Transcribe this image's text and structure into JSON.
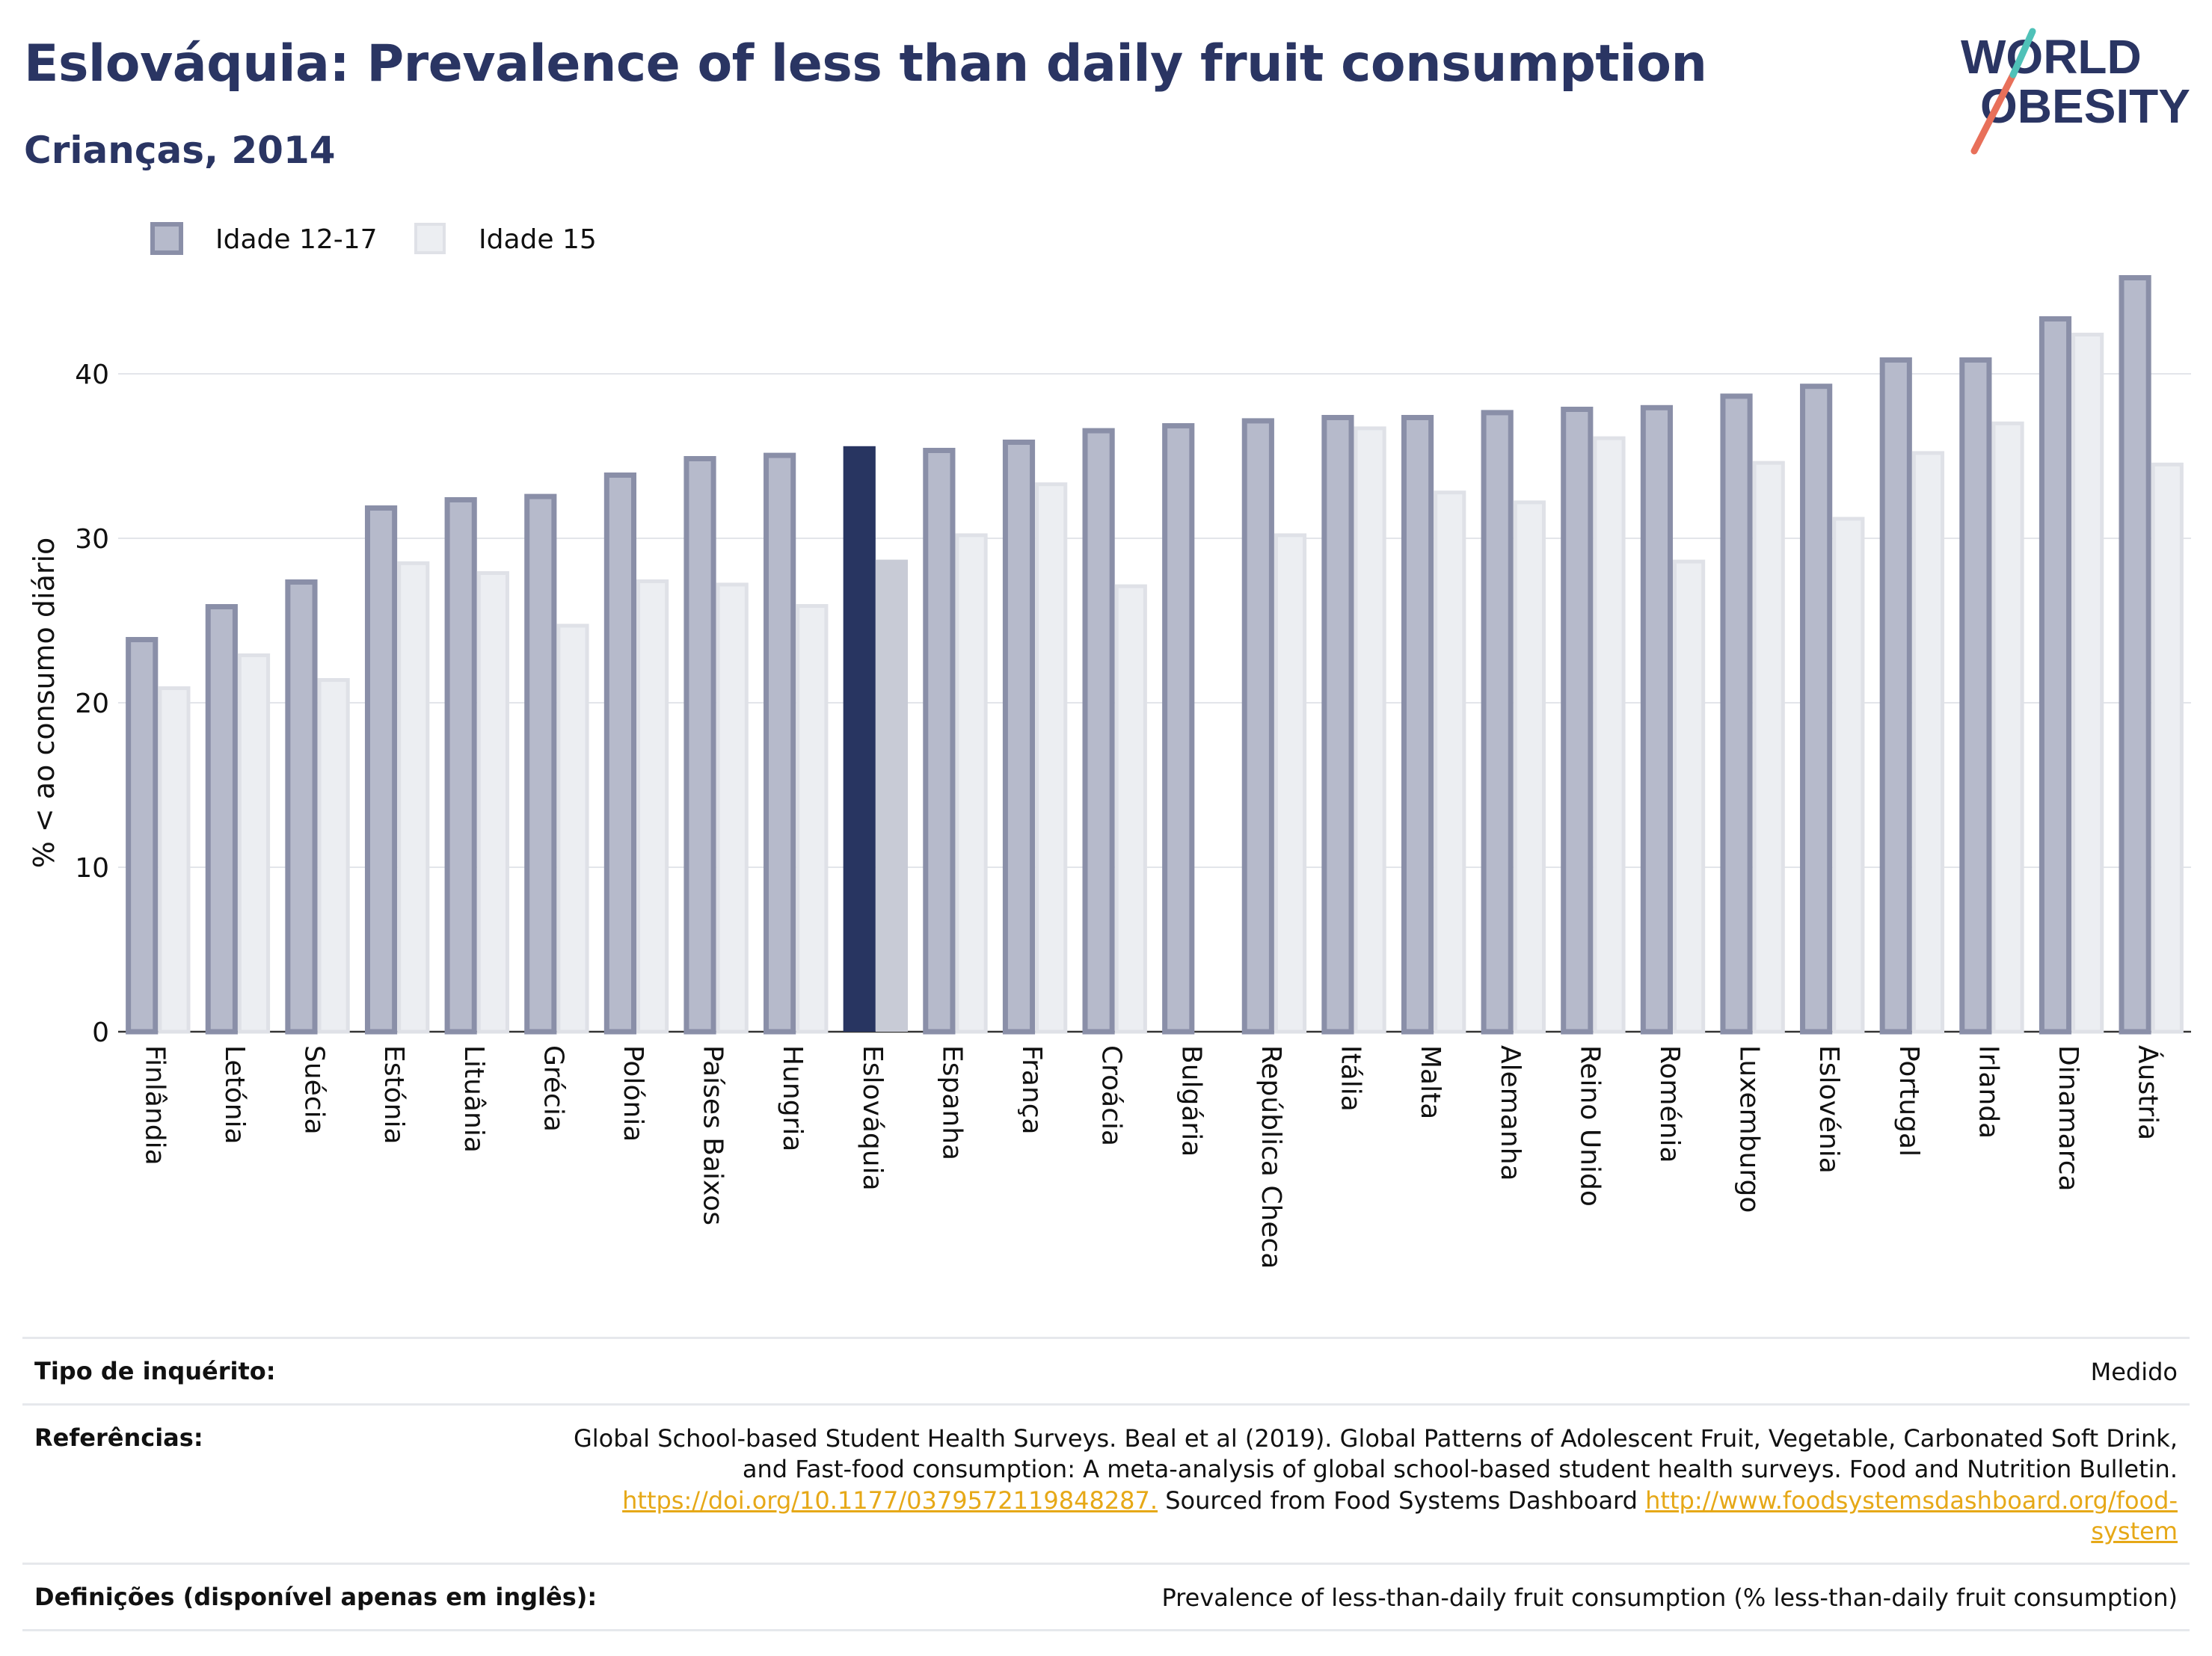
{
  "header": {
    "title": "Eslováquia: Prevalence of less than daily fruit consumption",
    "subtitle": "Crianças, 2014",
    "logo_line1": "WORLD",
    "logo_line2": "OBESITY"
  },
  "chart_data": {
    "type": "bar",
    "ylabel": "% < ao consumo diário",
    "ylim": [
      0,
      50
    ],
    "yticks": [
      0,
      10,
      20,
      30,
      40
    ],
    "grid": true,
    "legend_position": "top-left",
    "highlight_category": "Eslováquia",
    "categories": [
      "Finlândia",
      "Letónia",
      "Suécia",
      "Estónia",
      "Lituânia",
      "Grécia",
      "Polónia",
      "Países Baixos",
      "Hungria",
      "Eslováquia",
      "Espanha",
      "França",
      "Croácia",
      "Bulgária",
      "República Checa",
      "Itália",
      "Malta",
      "Alemanha",
      "Reino Unido",
      "Roménia",
      "Luxemburgo",
      "Eslovénia",
      "Portugal",
      "Irlanda",
      "Dinamarca",
      "Áustria"
    ],
    "series": [
      {
        "name": "Idade 12-17",
        "color": "#b6bacb",
        "border": "#8a8fa8",
        "highlight_color": "#283561",
        "values": [
          24,
          26,
          27.5,
          32,
          32.5,
          32.7,
          34,
          35,
          35.2,
          35.6,
          35.5,
          36,
          36.7,
          37,
          37.3,
          37.5,
          37.5,
          37.8,
          38,
          38.1,
          38.8,
          39.4,
          41,
          41,
          43.5,
          46
        ]
      },
      {
        "name": "Idade 15",
        "color": "#eceef2",
        "border": "#dfe1e7",
        "highlight_color": "#c8cbd6",
        "values": [
          21,
          23,
          21.5,
          28.6,
          28,
          24.8,
          27.5,
          27.3,
          26,
          28.7,
          30.3,
          33.4,
          27.2,
          null,
          30.3,
          36.8,
          32.9,
          32.3,
          36.2,
          28.7,
          34.7,
          31.3,
          35.3,
          37.1,
          42.5,
          34.6
        ]
      }
    ]
  },
  "footer": {
    "survey_label": "Tipo de inquérito:",
    "survey_value": "Medido",
    "references_label": "Referências:",
    "references_line1": "Global School-based Student Health Surveys. Beal et al (2019). Global Patterns of Adolescent Fruit, Vegetable, Carbonated Soft Drink,",
    "references_line2": "and Fast-food consumption: A meta-analysis of global school-based student health surveys. Food and Nutrition Bulletin.",
    "references_link1": "https://doi.org/10.1177/0379572119848287.",
    "references_mid": " Sourced from Food Systems Dashboard ",
    "references_link2a": "http://www.foodsystemsdashboard.org/food-",
    "references_link2b": "system",
    "definitions_label": "Definições (disponível apenas em inglês):",
    "definitions_value": "Prevalence of less-than-daily fruit consumption (% less-than-daily fruit consumption)"
  }
}
